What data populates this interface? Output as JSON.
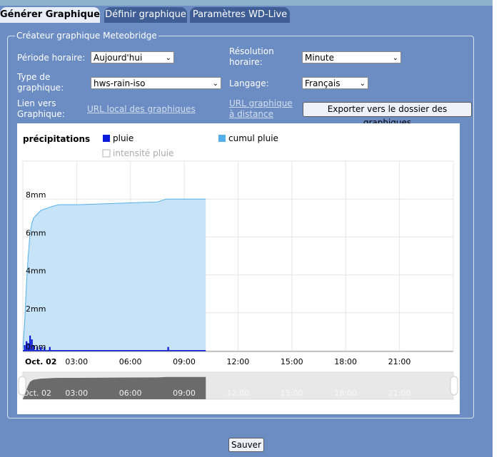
{
  "tabs": [
    {
      "label": "Générer Graphique",
      "active": true
    },
    {
      "label": "Définir graphique",
      "active": false
    },
    {
      "label": "Paramètres WD-Live",
      "active": false
    }
  ],
  "panel": {
    "legend": "Créateur graphique Meteobridge"
  },
  "form": {
    "period_label": "Période horaire:",
    "period_value": "Aujourd'hui",
    "resolution_label_1": "Résolution",
    "resolution_label_2": "horaire:",
    "resolution_value": "Minute",
    "type_label_1": "Type de",
    "type_label_2": "graphique:",
    "type_value": "hws-rain-iso",
    "language_label": "Langage:",
    "language_value": "Français",
    "link_label_1": "Lien vers",
    "link_label_2": "Graphique:",
    "local_url_link": "URL local des graphiques",
    "remote_url_1": "URL graphique",
    "remote_url_2": "à distance",
    "export_button": "Exporter vers le dossier des graphiques",
    "save_button": "Sauver"
  },
  "colors": {
    "background": "#6b8dc4",
    "tab_active": "#e8eef8",
    "tab_inactive": "#3f5e95",
    "rain_bar": "#0a1adb",
    "cumulative_fill": "#c7e3f7",
    "cumulative_line": "#53b0ec",
    "navigator_fill": "#6b6b6b"
  },
  "chart_data": {
    "type": "area",
    "title": "précipitations",
    "legend": [
      {
        "name": "pluie",
        "color": "#0a1adb",
        "enabled": true
      },
      {
        "name": "cumul pluie",
        "color": "#53b0ec",
        "enabled": true
      },
      {
        "name": "intensité pluie",
        "color": "#cccccc",
        "enabled": false
      }
    ],
    "y_ticks": [
      "0mm",
      "2mm",
      "4mm",
      "6mm",
      "8mm"
    ],
    "ylim": [
      0,
      10
    ],
    "x_ticks": [
      "Oct. 02",
      "03:00",
      "06:00",
      "09:00",
      "12:00",
      "15:00",
      "18:00",
      "21:00"
    ],
    "xlim_hours": [
      0,
      24
    ],
    "grid": true,
    "series": [
      {
        "name": "cumul pluie",
        "x_hours": [
          0,
          0.1,
          0.2,
          0.3,
          0.4,
          0.5,
          0.6,
          0.8,
          1.0,
          1.3,
          1.6,
          2.0,
          3.0,
          4.5,
          6.0,
          7.5,
          8.0,
          9.0,
          10.2
        ],
        "values": [
          0.1,
          1.5,
          3.5,
          5.0,
          6.2,
          6.7,
          7.0,
          7.2,
          7.4,
          7.5,
          7.6,
          7.7,
          7.7,
          7.75,
          7.8,
          7.85,
          8.0,
          8.0,
          8.0
        ]
      },
      {
        "name": "pluie",
        "x_hours": [
          0.1,
          0.2,
          0.3,
          0.4,
          0.5,
          0.6,
          0.8,
          1.0,
          1.2,
          1.5,
          8.1
        ],
        "values": [
          0.3,
          0.5,
          0.4,
          0.8,
          0.6,
          0.3,
          0.2,
          0.2,
          0.2,
          0.2,
          0.2
        ]
      }
    ],
    "navigator_labels": [
      "Oct. 02",
      "03:00",
      "06:00",
      "09:00",
      "12:00",
      "15:00",
      "18:00",
      "21:00"
    ]
  }
}
